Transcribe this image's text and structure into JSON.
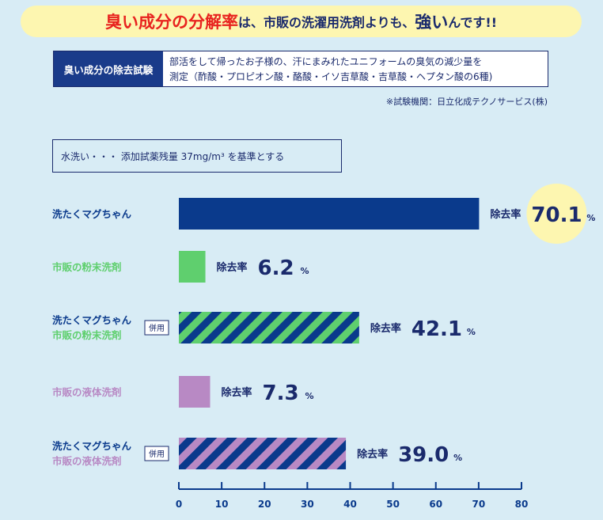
{
  "banner": {
    "part1": "臭い成分の分解率",
    "part2": "は、市販の洗濯用洗剤よりも、",
    "part3": "強い",
    "part4": "んです!!"
  },
  "test": {
    "label": "臭い成分の除去試験",
    "desc_line1": "部活をして帰ったお子様の、汗にまみれたユニフォームの臭気の減少量を",
    "desc_line2": "測定（酢酸・プロピオン酸・酪酸・イソ吉草酸・吉草酸・ヘプタン酸の6種)"
  },
  "source": "※試験機関：日立化成テクノサービス(株)",
  "baseline": "水洗い・・・ 添加試薬残量 37mg/m³ を基準とする",
  "colors": {
    "navy": "#0a3a8c",
    "green": "#5fcf6e",
    "purple": "#b889c4",
    "highlight": "#fdf6b0",
    "text": "#1a2a6c"
  },
  "chart_data": {
    "type": "bar",
    "orientation": "horizontal",
    "value_prefix": "除去率",
    "unit": "%",
    "xlim": [
      0,
      80
    ],
    "xticks": [
      "0",
      "10",
      "20",
      "30",
      "40",
      "50",
      "60",
      "70",
      "80"
    ],
    "bars": [
      {
        "label_lines": [
          "洗たくマグちゃん"
        ],
        "label_colors": [
          "navy"
        ],
        "tag": "",
        "value": 70.1,
        "value_text": "70.1",
        "fill": "navy",
        "striped": false,
        "highlight": true
      },
      {
        "label_lines": [
          "市販の粉末洗剤"
        ],
        "label_colors": [
          "green"
        ],
        "tag": "",
        "value": 6.2,
        "value_text": "6.2",
        "fill": "green",
        "striped": false,
        "highlight": false
      },
      {
        "label_lines": [
          "洗たくマグちゃん",
          "市販の粉末洗剤"
        ],
        "label_colors": [
          "navy",
          "green"
        ],
        "tag": "併用",
        "value": 42.1,
        "value_text": "42.1",
        "fill": "navy",
        "stripe": "green",
        "striped": true,
        "highlight": false
      },
      {
        "label_lines": [
          "市販の液体洗剤"
        ],
        "label_colors": [
          "purple"
        ],
        "tag": "",
        "value": 7.3,
        "value_text": "7.3",
        "fill": "purple",
        "striped": false,
        "highlight": false
      },
      {
        "label_lines": [
          "洗たくマグちゃん",
          "市販の液体洗剤"
        ],
        "label_colors": [
          "navy",
          "purple"
        ],
        "tag": "併用",
        "value": 39.0,
        "value_text": "39.0",
        "fill": "navy",
        "stripe": "purple",
        "striped": true,
        "highlight": false
      }
    ]
  }
}
